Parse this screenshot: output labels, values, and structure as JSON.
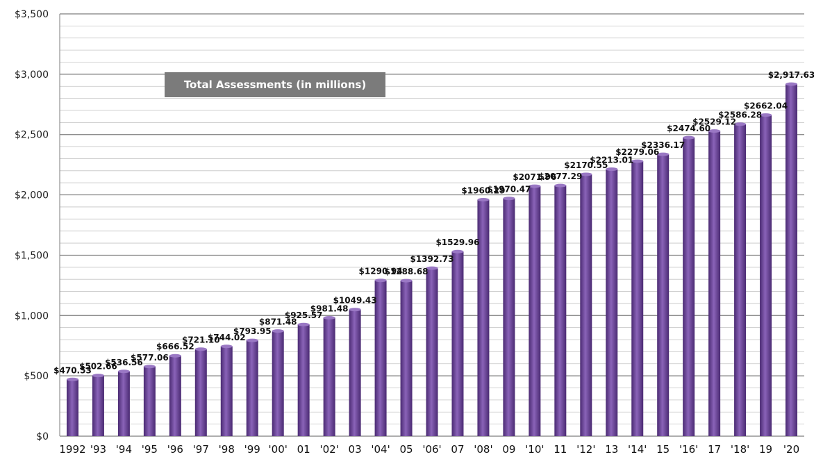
{
  "chart_data": {
    "type": "bar",
    "title": "Total Assessments (in millions)",
    "categories": [
      "1992",
      "'93",
      "'94",
      "'95",
      "'96",
      "'97",
      "'98",
      "'99",
      "'00'",
      "01",
      "'02'",
      "03",
      "'04'",
      "05",
      "'06'",
      "07",
      "'08'",
      "09",
      "'10'",
      "11",
      "'12'",
      "13",
      "'14'",
      "15",
      "'16'",
      "17",
      "'18'",
      "19",
      "'20"
    ],
    "values": [
      470.53,
      502.66,
      536.56,
      577.06,
      666.52,
      721.1,
      744.02,
      793.95,
      871.48,
      925.57,
      981.48,
      1049.43,
      1290.94,
      1288.68,
      1392.73,
      1529.96,
      1960.29,
      1970.47,
      2071.96,
      2077.29,
      2170.55,
      2213.01,
      2279.06,
      2336.17,
      2474.6,
      2529.12,
      2586.28,
      2662.04,
      2917.63
    ],
    "data_labels": [
      "$470.53",
      "$502.66",
      "$536.56",
      "$577.06",
      "$666.52",
      "$721.10",
      "$744.02",
      "$793.95",
      "$871.48",
      "$925.57",
      "$981.48",
      "$1049.43",
      "$1290.94",
      "$1288.68",
      "$1392.73",
      "$1529.96",
      "$1960.29",
      "$1970.47",
      "$2071.96",
      "$2077.29",
      "$2170.55",
      "$2213.01",
      "$2279.06",
      "$2336.17",
      "$2474.60",
      "$2529.12",
      "$2586.28",
      "$2662.04",
      "$2,917.63"
    ],
    "ylim": [
      0,
      3500
    ],
    "yticks": [
      0,
      500,
      1000,
      1500,
      2000,
      2500,
      3000,
      3500
    ],
    "ytick_labels": [
      "$0",
      "$500",
      "$1,000",
      "$1,500",
      "$2,000",
      "$2,500",
      "$3,000",
      "$3,500"
    ],
    "xlabel": "",
    "ylabel": "",
    "grid": true,
    "colors": {
      "bar": "#6a4397",
      "bar_light": "#9a78c4",
      "bar_dark": "#4a2a72",
      "grid": "#9a9a9a",
      "title_box": "#7b7b7b"
    }
  }
}
